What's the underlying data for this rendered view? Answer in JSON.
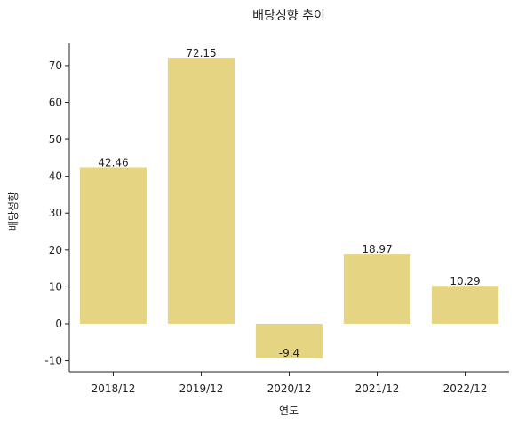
{
  "chart_data": {
    "type": "bar",
    "title": "배당성향 추이",
    "xlabel": "연도",
    "ylabel": "배당성향",
    "categories": [
      "2018/12",
      "2019/12",
      "2020/12",
      "2021/12",
      "2022/12"
    ],
    "values": [
      42.46,
      72.15,
      -9.4,
      18.97,
      10.29
    ],
    "value_labels": [
      "42.46",
      "72.15",
      "-9.4",
      "18.97",
      "10.29"
    ],
    "ylim": [
      -13,
      76
    ],
    "yticks": [
      -10,
      0,
      10,
      20,
      30,
      40,
      50,
      60,
      70
    ],
    "ytick_labels": [
      "-10",
      "0",
      "10",
      "20",
      "30",
      "40",
      "50",
      "60",
      "70"
    ],
    "grid": false,
    "bar_color": "#e5d583"
  }
}
